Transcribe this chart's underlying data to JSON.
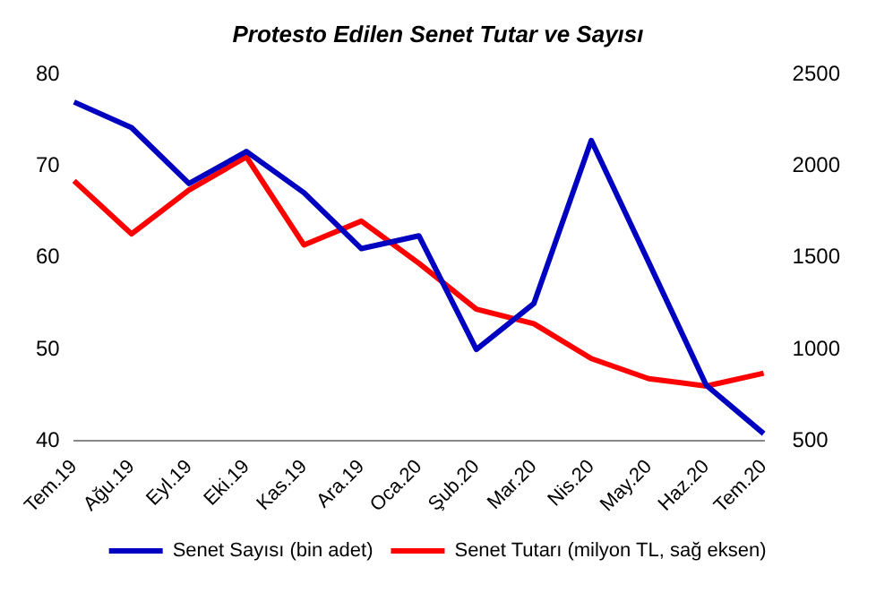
{
  "chart_data": {
    "type": "line",
    "title": "Protesto Edilen Senet Tutar ve Sayısı",
    "categories": [
      "Tem.19",
      "Ağu.19",
      "Eyl.19",
      "Eki.19",
      "Kas.19",
      "Ara.19",
      "Oca.20",
      "Şub.20",
      "Mar.20",
      "Nis.20",
      "May.20",
      "Haz.20",
      "Tem.20"
    ],
    "series": [
      {
        "name": "Senet Sayısı (bin adet)",
        "color": "#0000c0",
        "values": [
          77.0,
          74.2,
          68.1,
          71.6,
          67.1,
          61.0,
          62.4,
          50.0,
          55.0,
          72.8,
          59.5,
          46.1,
          40.8
        ]
      },
      {
        "name": "Senet Tutarı (milyon TL, sağ eksen)",
        "color": "#ff0000",
        "axis": "y2",
        "values": [
          1920,
          1630,
          1870,
          2050,
          1570,
          1700,
          1470,
          1220,
          1140,
          950,
          840,
          800,
          870
        ]
      }
    ],
    "ylim": [
      40,
      80
    ],
    "yticks": [
      40,
      50,
      60,
      70,
      80
    ],
    "y2lim": [
      500,
      2500
    ],
    "y2ticks": [
      500,
      1000,
      1500,
      2000,
      2500
    ],
    "grid": false,
    "legend": "bottom",
    "marker": "none",
    "line_style": "solid"
  }
}
